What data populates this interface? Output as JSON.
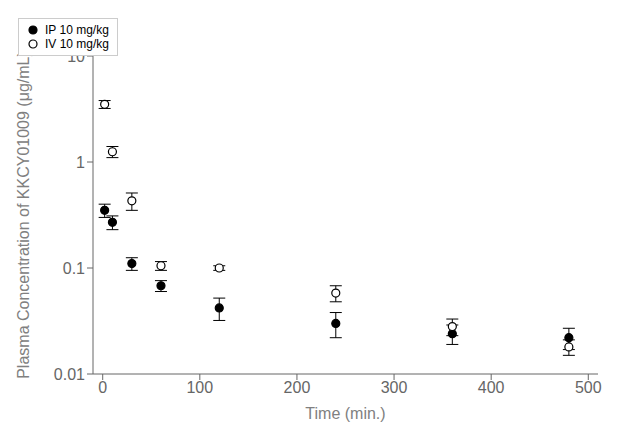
{
  "chart_data": {
    "type": "scatter",
    "title": "",
    "xlabel": "Time (min.)",
    "ylabel": "Plasma Concentration of KKCY01009 (μg/mL)",
    "xlim": [
      -10,
      510
    ],
    "ylim": [
      0.01,
      10
    ],
    "xticks": [
      0,
      100,
      200,
      300,
      400,
      500
    ],
    "yticks": [
      0.01,
      0.1,
      1,
      10
    ],
    "log": "y",
    "grid": false,
    "legend": "upper right",
    "series": [
      {
        "name": "IP 10 mg/kg",
        "color": "#000000",
        "marker": "circle",
        "x": [
          2,
          10,
          30,
          60,
          120,
          240,
          360,
          480
        ],
        "values": [
          0.35,
          0.27,
          0.11,
          0.068,
          0.042,
          0.03,
          0.024,
          0.022
        ],
        "error_low": [
          0.05,
          0.04,
          0.015,
          0.008,
          0.01,
          0.008,
          0.005,
          0.005
        ],
        "error_high": [
          0.05,
          0.04,
          0.015,
          0.008,
          0.01,
          0.008,
          0.005,
          0.005
        ]
      },
      {
        "name": "IV 10 mg/kg",
        "color": "#000000",
        "marker": "circle_open",
        "x": [
          2,
          10,
          30,
          60,
          120,
          240,
          360,
          480
        ],
        "values": [
          3.5,
          1.25,
          0.43,
          0.105,
          0.1,
          0.058,
          0.028,
          0.018
        ],
        "error_low": [
          0.3,
          0.15,
          0.08,
          0.01,
          0.005,
          0.01,
          0.005,
          0.003
        ],
        "error_high": [
          0.3,
          0.15,
          0.08,
          0.01,
          0.005,
          0.01,
          0.005,
          0.003
        ]
      }
    ]
  }
}
